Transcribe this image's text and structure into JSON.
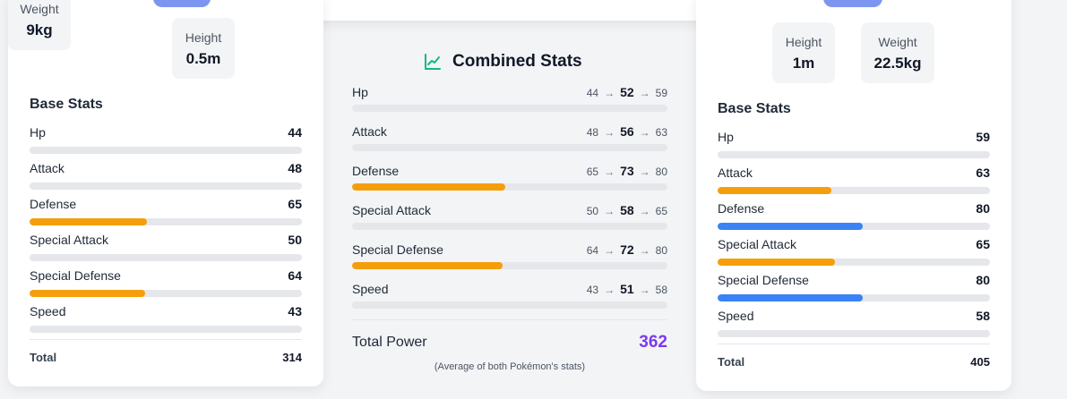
{
  "colors": {
    "bar_default": "#e5e7eb",
    "bar_orange": "#f59e0b",
    "bar_blue": "#3b82f6",
    "pill": "#7c95ee",
    "total_power": "#7c3aed",
    "chart_icon": "#10b981"
  },
  "left": {
    "height_label": "Height",
    "height_value": "0.5m",
    "weight_label": "Weight",
    "weight_value": "9kg",
    "section_title": "Base Stats",
    "stats": [
      {
        "name": "Hp",
        "value": "44",
        "fill": 0,
        "color": "none"
      },
      {
        "name": "Attack",
        "value": "48",
        "fill": 0,
        "color": "none"
      },
      {
        "name": "Defense",
        "value": "65",
        "fill": 0.43,
        "color": "orange"
      },
      {
        "name": "Special Attack",
        "value": "50",
        "fill": 0,
        "color": "none"
      },
      {
        "name": "Special Defense",
        "value": "64",
        "fill": 0.425,
        "color": "orange"
      },
      {
        "name": "Speed",
        "value": "43",
        "fill": 0,
        "color": "none"
      }
    ],
    "total_label": "Total",
    "total_value": "314"
  },
  "right": {
    "height_label": "Height",
    "height_value": "1m",
    "weight_label": "Weight",
    "weight_value": "22.5kg",
    "section_title": "Base Stats",
    "stats": [
      {
        "name": "Hp",
        "value": "59",
        "fill": 0,
        "color": "none"
      },
      {
        "name": "Attack",
        "value": "63",
        "fill": 0.418,
        "color": "orange"
      },
      {
        "name": "Defense",
        "value": "80",
        "fill": 0.533,
        "color": "blue"
      },
      {
        "name": "Special Attack",
        "value": "65",
        "fill": 0.431,
        "color": "orange"
      },
      {
        "name": "Special Defense",
        "value": "80",
        "fill": 0.533,
        "color": "blue"
      },
      {
        "name": "Speed",
        "value": "58",
        "fill": 0,
        "color": "none"
      }
    ],
    "total_label": "Total",
    "total_value": "405"
  },
  "combined": {
    "title": "Combined Stats",
    "icon": "chart-line-icon",
    "arrow": "→",
    "stats": [
      {
        "name": "Hp",
        "left": "44",
        "avg": "52",
        "right": "59",
        "fill": 0,
        "color": "none"
      },
      {
        "name": "Attack",
        "left": "48",
        "avg": "56",
        "right": "63",
        "fill": 0,
        "color": "none"
      },
      {
        "name": "Defense",
        "left": "65",
        "avg": "73",
        "right": "80",
        "fill": 0.486,
        "color": "orange"
      },
      {
        "name": "Special Attack",
        "left": "50",
        "avg": "58",
        "right": "65",
        "fill": 0,
        "color": "none"
      },
      {
        "name": "Special Defense",
        "left": "64",
        "avg": "72",
        "right": "80",
        "fill": 0.477,
        "color": "orange"
      },
      {
        "name": "Speed",
        "left": "43",
        "avg": "51",
        "right": "58",
        "fill": 0,
        "color": "none"
      }
    ],
    "total_label": "Total Power",
    "total_value": "362",
    "total_note": "(Average of both Pokémon's stats)"
  }
}
